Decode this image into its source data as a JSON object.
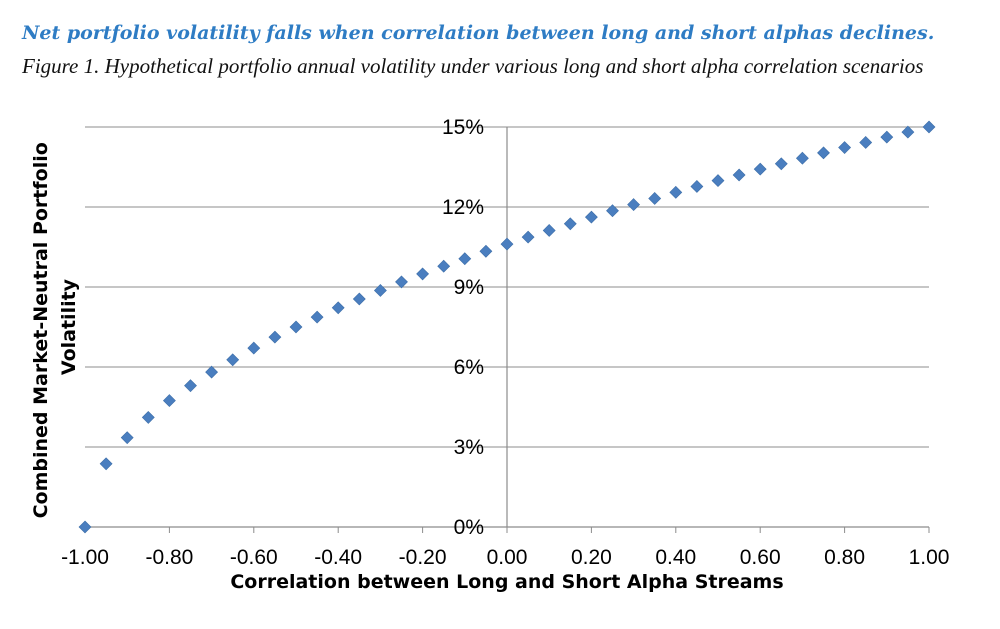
{
  "header": {
    "headline": "Net portfolio volatility falls when correlation between long and short alphas declines.",
    "caption": "Figure 1. Hypothetical portfolio annual volatility under various long and short alpha correlation scenarios"
  },
  "colors": {
    "headline": "#2e7cc4",
    "marker": "#4a7ebf",
    "gridline": "#8c8c8c",
    "axis": "#8c8c8c"
  },
  "chart_data": {
    "type": "scatter",
    "marker": "diamond",
    "title": "",
    "xlabel": "Correlation between Long and Short Alpha Streams",
    "ylabel_lines": [
      "Combined Market-Neutral Portfolio",
      "Volatility"
    ],
    "xlim": [
      -1.0,
      1.0
    ],
    "ylim": [
      0,
      15
    ],
    "x_ticks": [
      -1.0,
      -0.8,
      -0.6,
      -0.4,
      -0.2,
      0.0,
      0.2,
      0.4,
      0.6,
      0.8,
      1.0
    ],
    "x_tick_labels": [
      "-1.00",
      "-0.80",
      "-0.60",
      "-0.40",
      "-0.20",
      "0.00",
      "0.20",
      "0.40",
      "0.60",
      "0.80",
      "1.00"
    ],
    "y_ticks": [
      0,
      3,
      6,
      9,
      12,
      15
    ],
    "y_tick_labels": [
      "0%",
      "3%",
      "6%",
      "9%",
      "12%",
      "15%"
    ],
    "grid": "horizontal",
    "legend": "none",
    "x": [
      -1.0,
      -0.95,
      -0.9,
      -0.85,
      -0.8,
      -0.75,
      -0.7,
      -0.65,
      -0.6,
      -0.55,
      -0.5,
      -0.45,
      -0.4,
      -0.35,
      -0.3,
      -0.25,
      -0.2,
      -0.15,
      -0.1,
      -0.05,
      0.0,
      0.05,
      0.1,
      0.15,
      0.2,
      0.25,
      0.3,
      0.35,
      0.4,
      0.45,
      0.5,
      0.55,
      0.6,
      0.65,
      0.7,
      0.75,
      0.8,
      0.85,
      0.9,
      0.95,
      1.0
    ],
    "y": [
      0.0,
      2.37,
      3.35,
      4.11,
      4.74,
      5.3,
      5.81,
      6.27,
      6.71,
      7.12,
      7.5,
      7.87,
      8.22,
      8.55,
      8.87,
      9.19,
      9.49,
      9.78,
      10.06,
      10.34,
      10.61,
      10.87,
      11.12,
      11.37,
      11.62,
      11.86,
      12.09,
      12.32,
      12.55,
      12.77,
      12.99,
      13.2,
      13.42,
      13.62,
      13.83,
      14.03,
      14.23,
      14.42,
      14.62,
      14.81,
      15.0
    ]
  }
}
